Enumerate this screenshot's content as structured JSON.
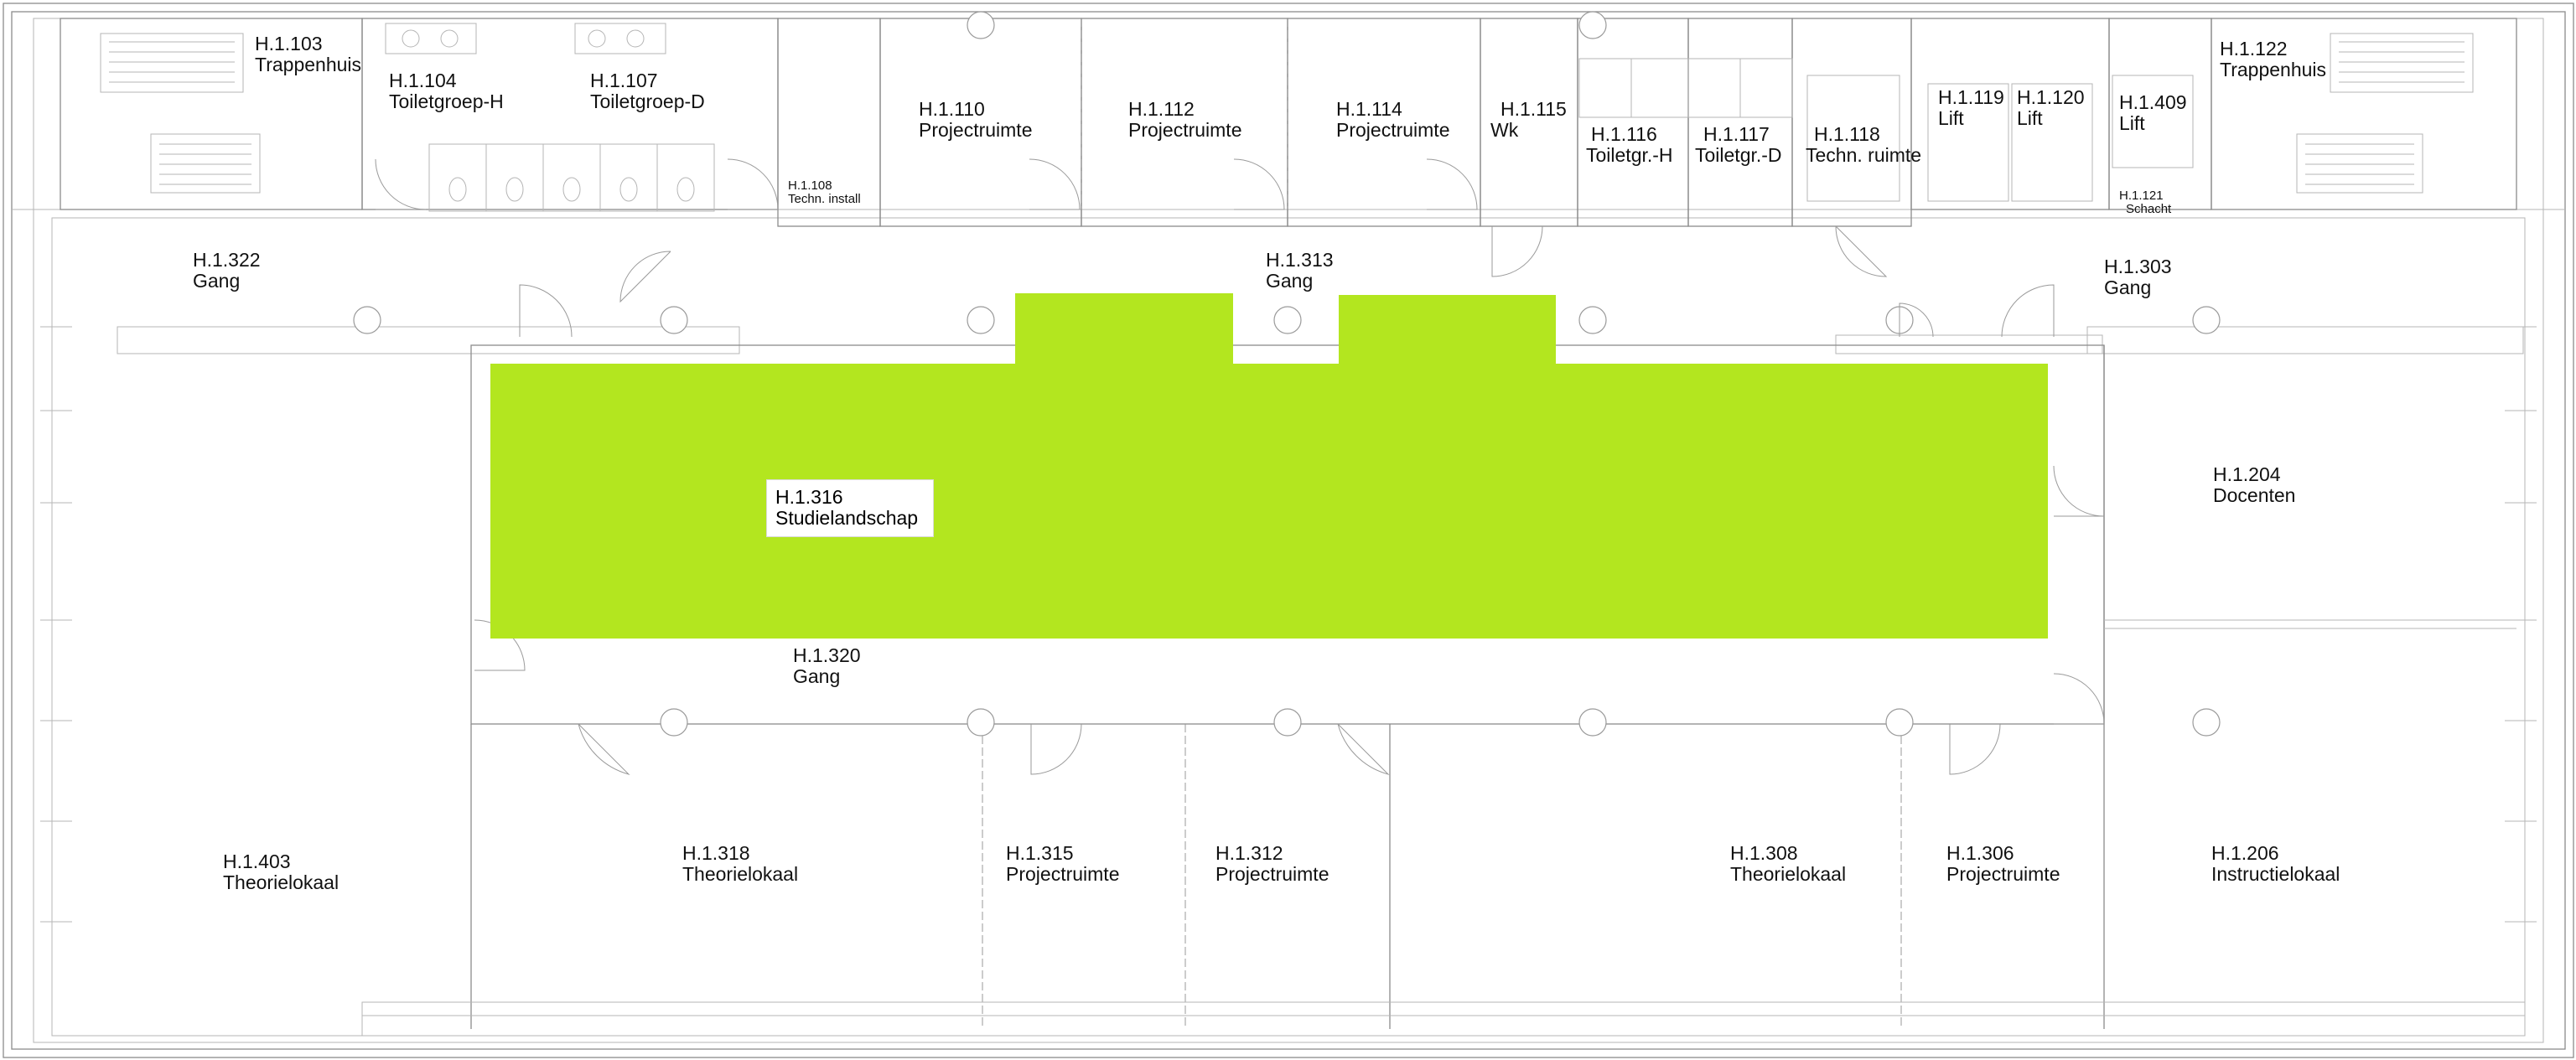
{
  "highlight_color": "#b3e61f",
  "selected_room": {
    "id": "H.1.316",
    "name": "Studielandschap"
  },
  "rooms": {
    "r103": {
      "id": "H.1.103",
      "name": "Trappenhuis"
    },
    "r104": {
      "id": "H.1.104",
      "name": "Toiletgroep-H"
    },
    "r107": {
      "id": "H.1.107",
      "name": "Toiletgroep-D"
    },
    "r108": {
      "id": "H.1.108",
      "name": "Techn. install"
    },
    "r110": {
      "id": "H.1.110",
      "name": "Projectruimte"
    },
    "r112": {
      "id": "H.1.112",
      "name": "Projectruimte"
    },
    "r114": {
      "id": "H.1.114",
      "name": "Projectruimte"
    },
    "r115": {
      "id": "H.1.115",
      "name": "Wk"
    },
    "r116": {
      "id": "H.1.116",
      "name": "Toiletgr.-H"
    },
    "r117": {
      "id": "H.1.117",
      "name": "Toiletgr.-D"
    },
    "r118": {
      "id": "H.1.118",
      "name": "Techn. ruimte"
    },
    "r119": {
      "id": "H.1.119",
      "name": "Lift"
    },
    "r120": {
      "id": "H.1.120",
      "name": "Lift"
    },
    "r409": {
      "id": "H.1.409",
      "name": "Lift"
    },
    "r121": {
      "id": "H.1.121",
      "name": "Schacht"
    },
    "r122": {
      "id": "H.1.122",
      "name": "Trappenhuis"
    },
    "r322": {
      "id": "H.1.322",
      "name": "Gang"
    },
    "r313": {
      "id": "H.1.313",
      "name": "Gang"
    },
    "r303": {
      "id": "H.1.303",
      "name": "Gang"
    },
    "r204": {
      "id": "H.1.204",
      "name": "Docenten"
    },
    "r320": {
      "id": "H.1.320",
      "name": "Gang"
    },
    "r403": {
      "id": "H.1.403",
      "name": "Theorielokaal"
    },
    "r318": {
      "id": "H.1.318",
      "name": "Theorielokaal"
    },
    "r315": {
      "id": "H.1.315",
      "name": "Projectruimte"
    },
    "r312": {
      "id": "H.1.312",
      "name": "Projectruimte"
    },
    "r308": {
      "id": "H.1.308",
      "name": "Theorielokaal"
    },
    "r306": {
      "id": "H.1.306",
      "name": "Projectruimte"
    },
    "r206": {
      "id": "H.1.206",
      "name": "Instructielokaal"
    }
  }
}
